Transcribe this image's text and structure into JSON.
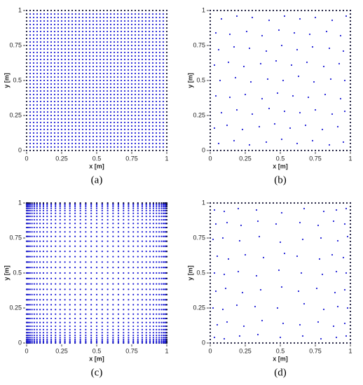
{
  "chart_data": [
    {
      "type": "grid",
      "caption": "(a)",
      "xlabel": "x [m]",
      "ylabel": "y [m]",
      "xlim": [
        0,
        1
      ],
      "ylim": [
        0,
        1
      ],
      "xticks": [
        0,
        0.25,
        0.5,
        0.75,
        1
      ],
      "yticks": [
        0,
        0.25,
        0.5,
        0.75,
        1
      ],
      "color": "#1f1fd6",
      "boundary_color": "#111133",
      "x_nodes": [
        0,
        0.025,
        0.05,
        0.075,
        0.1,
        0.125,
        0.15,
        0.175,
        0.2,
        0.225,
        0.25,
        0.275,
        0.3,
        0.325,
        0.35,
        0.375,
        0.4,
        0.425,
        0.45,
        0.475,
        0.5,
        0.525,
        0.55,
        0.575,
        0.6,
        0.625,
        0.65,
        0.675,
        0.7,
        0.725,
        0.75,
        0.775,
        0.8,
        0.825,
        0.85,
        0.875,
        0.9,
        0.925,
        0.95,
        0.975,
        1
      ],
      "y_nodes": [
        0,
        0.025,
        0.05,
        0.075,
        0.1,
        0.125,
        0.15,
        0.175,
        0.2,
        0.225,
        0.25,
        0.275,
        0.3,
        0.325,
        0.35,
        0.375,
        0.4,
        0.425,
        0.45,
        0.475,
        0.5,
        0.525,
        0.55,
        0.575,
        0.6,
        0.625,
        0.65,
        0.675,
        0.7,
        0.725,
        0.75,
        0.775,
        0.8,
        0.825,
        0.85,
        0.875,
        0.9,
        0.925,
        0.95,
        0.975,
        1
      ]
    },
    {
      "type": "scatter",
      "caption": "(b)",
      "xlabel": "x [m]",
      "ylabel": "y [m]",
      "xlim": [
        0,
        1
      ],
      "ylim": [
        0,
        1
      ],
      "xticks": [
        0,
        0.25,
        0.5,
        0.75,
        1
      ],
      "yticks": [
        0,
        0.25,
        0.5,
        0.75,
        1
      ],
      "color": "#1f1fd6",
      "boundary_color": "#111133",
      "boundary_nodes": [
        0,
        0.025,
        0.05,
        0.075,
        0.1,
        0.125,
        0.15,
        0.175,
        0.2,
        0.225,
        0.25,
        0.275,
        0.3,
        0.325,
        0.35,
        0.375,
        0.4,
        0.425,
        0.45,
        0.475,
        0.5,
        0.525,
        0.55,
        0.575,
        0.6,
        0.625,
        0.65,
        0.675,
        0.7,
        0.725,
        0.75,
        0.775,
        0.8,
        0.825,
        0.85,
        0.875,
        0.9,
        0.925,
        0.95,
        0.975,
        1
      ],
      "x": [
        0.06,
        0.17,
        0.28,
        0.4,
        0.51,
        0.62,
        0.73,
        0.85,
        0.95,
        0.03,
        0.12,
        0.23,
        0.35,
        0.46,
        0.57,
        0.68,
        0.8,
        0.91,
        0.08,
        0.19,
        0.3,
        0.42,
        0.53,
        0.64,
        0.75,
        0.87,
        0.96,
        0.04,
        0.14,
        0.25,
        0.37,
        0.48,
        0.59,
        0.7,
        0.82,
        0.93,
        0.07,
        0.18,
        0.29,
        0.41,
        0.52,
        0.63,
        0.74,
        0.86,
        0.96,
        0.03,
        0.13,
        0.24,
        0.36,
        0.47,
        0.58,
        0.69,
        0.81,
        0.92,
        0.06,
        0.17,
        0.28,
        0.4,
        0.51,
        0.62,
        0.73,
        0.85,
        0.95,
        0.04,
        0.14,
        0.26,
        0.37,
        0.49,
        0.6,
        0.71,
        0.83,
        0.93,
        0.08,
        0.19,
        0.3,
        0.42,
        0.53,
        0.64,
        0.75,
        0.87,
        0.97
      ],
      "y": [
        0.05,
        0.07,
        0.04,
        0.06,
        0.08,
        0.05,
        0.07,
        0.04,
        0.06,
        0.16,
        0.18,
        0.15,
        0.17,
        0.19,
        0.16,
        0.18,
        0.15,
        0.17,
        0.27,
        0.29,
        0.26,
        0.3,
        0.28,
        0.27,
        0.29,
        0.26,
        0.28,
        0.39,
        0.38,
        0.4,
        0.37,
        0.41,
        0.39,
        0.38,
        0.4,
        0.37,
        0.5,
        0.52,
        0.49,
        0.51,
        0.5,
        0.53,
        0.49,
        0.51,
        0.5,
        0.61,
        0.63,
        0.6,
        0.62,
        0.64,
        0.61,
        0.63,
        0.6,
        0.62,
        0.72,
        0.74,
        0.73,
        0.71,
        0.75,
        0.72,
        0.74,
        0.73,
        0.71,
        0.84,
        0.83,
        0.85,
        0.82,
        0.86,
        0.84,
        0.83,
        0.85,
        0.82,
        0.94,
        0.96,
        0.95,
        0.93,
        0.96,
        0.94,
        0.95,
        0.93,
        0.96
      ]
    },
    {
      "type": "grid",
      "caption": "(c)",
      "xlabel": "x [m]",
      "ylabel": "y [m]",
      "xlim": [
        0,
        1
      ],
      "ylim": [
        0,
        1
      ],
      "xticks": [
        0,
        0.25,
        0.5,
        0.75,
        1
      ],
      "yticks": [
        0,
        0.25,
        0.5,
        0.75,
        1
      ],
      "color": "#1f1fd6",
      "boundary_color": "#111133",
      "x_nodes": [
        0,
        0.0015,
        0.0062,
        0.0138,
        0.0245,
        0.0381,
        0.0545,
        0.0737,
        0.0955,
        0.1198,
        0.1464,
        0.1753,
        0.2061,
        0.2388,
        0.273,
        0.3087,
        0.3455,
        0.3833,
        0.4218,
        0.4608,
        0.5,
        0.5392,
        0.5782,
        0.6167,
        0.6545,
        0.6913,
        0.727,
        0.7612,
        0.7939,
        0.8247,
        0.8536,
        0.8802,
        0.9045,
        0.9263,
        0.9455,
        0.9619,
        0.9755,
        0.9862,
        0.9938,
        0.9985,
        1
      ],
      "y_nodes": [
        0,
        0.0015,
        0.0062,
        0.0138,
        0.0245,
        0.0381,
        0.0545,
        0.0737,
        0.0955,
        0.1198,
        0.1464,
        0.1753,
        0.2061,
        0.2388,
        0.273,
        0.3087,
        0.3455,
        0.3833,
        0.4218,
        0.4608,
        0.5,
        0.5392,
        0.5782,
        0.6167,
        0.6545,
        0.6913,
        0.727,
        0.7612,
        0.7939,
        0.8247,
        0.8536,
        0.8802,
        0.9045,
        0.9263,
        0.9455,
        0.9619,
        0.9755,
        0.9862,
        0.9938,
        0.9985,
        1
      ]
    },
    {
      "type": "scatter",
      "caption": "(d)",
      "xlabel": "x [m]",
      "ylabel": "y [m]",
      "xlim": [
        0,
        1
      ],
      "ylim": [
        0,
        1
      ],
      "xticks": [
        0,
        0.25,
        0.5,
        0.75,
        1
      ],
      "yticks": [
        0,
        0.25,
        0.5,
        0.75,
        1
      ],
      "color": "#1f1fd6",
      "boundary_color": "#111133",
      "boundary_nodes": [
        0,
        0.025,
        0.05,
        0.075,
        0.1,
        0.125,
        0.15,
        0.175,
        0.2,
        0.225,
        0.25,
        0.275,
        0.3,
        0.325,
        0.35,
        0.375,
        0.4,
        0.425,
        0.45,
        0.475,
        0.5,
        0.525,
        0.55,
        0.575,
        0.6,
        0.625,
        0.65,
        0.675,
        0.7,
        0.725,
        0.75,
        0.775,
        0.8,
        0.825,
        0.85,
        0.875,
        0.9,
        0.925,
        0.95,
        0.975,
        1
      ],
      "x": [
        0.03,
        0.1,
        0.21,
        0.34,
        0.5,
        0.66,
        0.79,
        0.9,
        0.97,
        0.05,
        0.12,
        0.24,
        0.37,
        0.52,
        0.64,
        0.77,
        0.88,
        0.96,
        0.02,
        0.09,
        0.19,
        0.32,
        0.48,
        0.67,
        0.81,
        0.91,
        0.98,
        0.04,
        0.11,
        0.23,
        0.36,
        0.51,
        0.63,
        0.76,
        0.89,
        0.96,
        0.03,
        0.1,
        0.2,
        0.33,
        0.49,
        0.65,
        0.8,
        0.9,
        0.97,
        0.05,
        0.13,
        0.25,
        0.38,
        0.53,
        0.62,
        0.78,
        0.87,
        0.95,
        0.02,
        0.09,
        0.21,
        0.35,
        0.5,
        0.66,
        0.79,
        0.91,
        0.98,
        0.04,
        0.12,
        0.22,
        0.34,
        0.47,
        0.64,
        0.77,
        0.88,
        0.96,
        0.03,
        0.1,
        0.2,
        0.33,
        0.51,
        0.67,
        0.81,
        0.9,
        0.97
      ],
      "y": [
        0.04,
        0.03,
        0.05,
        0.06,
        0.04,
        0.05,
        0.03,
        0.04,
        0.05,
        0.13,
        0.15,
        0.12,
        0.16,
        0.14,
        0.13,
        0.15,
        0.12,
        0.14,
        0.25,
        0.24,
        0.27,
        0.26,
        0.25,
        0.28,
        0.24,
        0.26,
        0.25,
        0.37,
        0.39,
        0.36,
        0.38,
        0.4,
        0.37,
        0.39,
        0.36,
        0.38,
        0.5,
        0.49,
        0.51,
        0.48,
        0.52,
        0.5,
        0.49,
        0.51,
        0.5,
        0.62,
        0.6,
        0.63,
        0.61,
        0.64,
        0.62,
        0.6,
        0.63,
        0.61,
        0.74,
        0.75,
        0.73,
        0.76,
        0.72,
        0.74,
        0.75,
        0.73,
        0.76,
        0.85,
        0.86,
        0.84,
        0.87,
        0.85,
        0.86,
        0.84,
        0.87,
        0.85,
        0.95,
        0.94,
        0.96,
        0.95,
        0.93,
        0.96,
        0.94,
        0.95,
        0.96
      ]
    }
  ]
}
